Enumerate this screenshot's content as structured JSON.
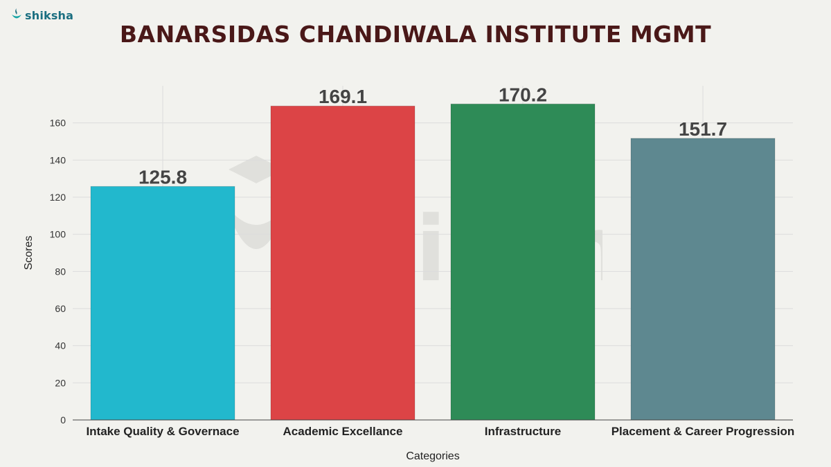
{
  "brand": {
    "logo_text": "shiksha",
    "icon": "shiksha-lamp-icon",
    "watermark_text": "shiksha"
  },
  "chart_data": {
    "type": "bar",
    "title": "BANARSIDAS CHANDIWALA INSTITUTE MGMT",
    "xlabel": "Categories",
    "ylabel": "Scores",
    "categories": [
      "Intake Quality & Governace",
      "Academic Excellance",
      "Infrastructure",
      "Placement & Career Progression"
    ],
    "values": [
      125.8,
      169.1,
      170.2,
      151.7
    ],
    "value_labels": [
      "125.8",
      "169.1",
      "170.2",
      "151.7"
    ],
    "colors": [
      "#22b8cd",
      "#dc4446",
      "#2e8b57",
      "#5e8890"
    ],
    "ylim": [
      0,
      180
    ],
    "yticks": [
      0,
      20,
      40,
      60,
      80,
      100,
      120,
      140,
      160
    ],
    "grid": true
  }
}
